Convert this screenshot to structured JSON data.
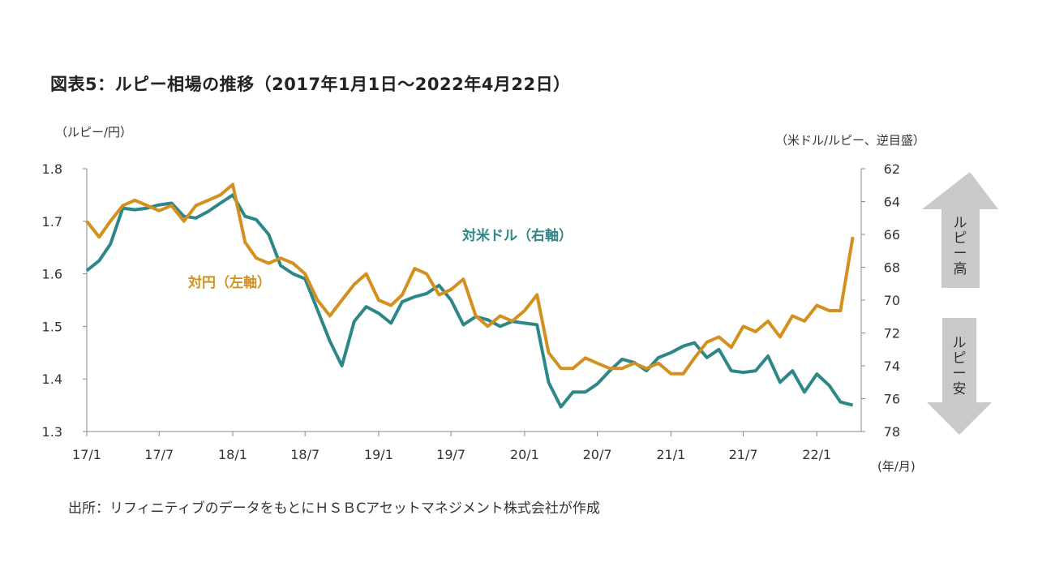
{
  "title": "図表5：ルピー相場の推移（2017年1月1日～2022年4月22日）",
  "left_axis_unit": "（ルピー/円）",
  "right_axis_unit": "（米ドル/ルピー、逆目盛）",
  "x_axis_unit": "(年/月)",
  "source": "出所：リフィニティブのデータをもとにＨＳＢCアセットマネジメント株式会社が作成",
  "annotations": {
    "up_label": "ルピー高",
    "down_label": "ルピー安"
  },
  "colors": {
    "jpy_series": "#D4901F",
    "usd_series": "#2E8787",
    "arrow": "#C9C9C9",
    "axis": "#888888"
  },
  "chart_data": {
    "type": "line",
    "x": [
      "2017-01",
      "2017-02",
      "2017-03",
      "2017-04",
      "2017-05",
      "2017-06",
      "2017-07",
      "2017-08",
      "2017-09",
      "2017-10",
      "2017-11",
      "2017-12",
      "2018-01",
      "2018-02",
      "2018-03",
      "2018-04",
      "2018-05",
      "2018-06",
      "2018-07",
      "2018-08",
      "2018-09",
      "2018-10",
      "2018-11",
      "2018-12",
      "2019-01",
      "2019-02",
      "2019-03",
      "2019-04",
      "2019-05",
      "2019-06",
      "2019-07",
      "2019-08",
      "2019-09",
      "2019-10",
      "2019-11",
      "2019-12",
      "2020-01",
      "2020-02",
      "2020-03",
      "2020-04",
      "2020-05",
      "2020-06",
      "2020-07",
      "2020-08",
      "2020-09",
      "2020-10",
      "2020-11",
      "2020-12",
      "2021-01",
      "2021-02",
      "2021-03",
      "2021-04",
      "2021-05",
      "2021-06",
      "2021-07",
      "2021-08",
      "2021-09",
      "2021-10",
      "2021-11",
      "2021-12",
      "2022-01",
      "2022-02",
      "2022-03",
      "2022-04"
    ],
    "xticks": [
      "17/1",
      "17/7",
      "18/1",
      "18/7",
      "19/1",
      "19/7",
      "20/1",
      "20/7",
      "21/1",
      "21/7",
      "22/1"
    ],
    "yticks_left": [
      "1.8",
      "1.7",
      "1.6",
      "1.5",
      "1.4",
      "1.3"
    ],
    "yticks_right": [
      "62",
      "64",
      "66",
      "68",
      "70",
      "72",
      "74",
      "76",
      "78"
    ],
    "ylim_left": [
      1.3,
      1.8
    ],
    "ylim_right": [
      62,
      78
    ],
    "right_axis_inverted": true,
    "series": [
      {
        "name": "対円（左軸）",
        "axis": "left",
        "values": [
          1.7,
          1.67,
          1.7,
          1.73,
          1.74,
          1.73,
          1.72,
          1.73,
          1.7,
          1.73,
          1.74,
          1.75,
          1.77,
          1.66,
          1.63,
          1.62,
          1.63,
          1.62,
          1.6,
          1.55,
          1.52,
          1.55,
          1.58,
          1.6,
          1.55,
          1.54,
          1.56,
          1.61,
          1.6,
          1.56,
          1.57,
          1.59,
          1.52,
          1.5,
          1.52,
          1.51,
          1.53,
          1.56,
          1.45,
          1.42,
          1.42,
          1.44,
          1.43,
          1.42,
          1.42,
          1.43,
          1.42,
          1.43,
          1.41,
          1.41,
          1.44,
          1.47,
          1.48,
          1.46,
          1.5,
          1.49,
          1.51,
          1.48,
          1.52,
          1.51,
          1.54,
          1.53,
          1.53,
          1.67
        ]
      },
      {
        "name": "対米ドル（右軸）",
        "axis": "right",
        "values": [
          68.2,
          67.6,
          66.6,
          64.4,
          64.5,
          64.4,
          64.2,
          64.1,
          64.9,
          65.0,
          64.6,
          64.1,
          63.6,
          64.9,
          65.1,
          66.0,
          67.9,
          68.4,
          68.7,
          70.6,
          72.5,
          74.0,
          71.3,
          70.4,
          70.8,
          71.4,
          70.1,
          69.8,
          69.6,
          69.1,
          70.0,
          71.5,
          71.0,
          71.2,
          71.6,
          71.3,
          71.4,
          71.5,
          75.0,
          76.5,
          75.6,
          75.6,
          75.1,
          74.3,
          73.6,
          73.8,
          74.3,
          73.5,
          73.2,
          72.8,
          72.6,
          73.5,
          73.0,
          74.3,
          74.4,
          74.3,
          73.4,
          75.0,
          74.3,
          75.6,
          74.5,
          75.2,
          76.2,
          76.4
        ]
      }
    ]
  }
}
